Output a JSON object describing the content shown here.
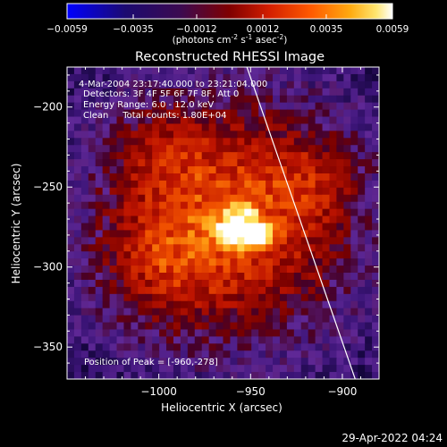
{
  "colorbar": {
    "ticks": [
      "-0.0059",
      "-0.0035",
      "-0.0012",
      "0.0012",
      "0.0035",
      "0.0059"
    ],
    "tick_values": [
      -0.0059,
      -0.0035,
      -0.0012,
      0.0012,
      0.0035,
      0.0059
    ],
    "range": [
      -0.0059,
      0.0059
    ],
    "units_prefix": "(photons cm",
    "units_exp1": "-2",
    "units_mid": " s",
    "units_exp2": "-1",
    "units_suffix": " asec",
    "units_exp3": "-2",
    "units_close": ")",
    "colors": [
      "#0000ff",
      "#1a0a6e",
      "#3a0a5a",
      "#7a0000",
      "#c81400",
      "#ff5000",
      "#ffa000",
      "#ffe060",
      "#ffffff"
    ]
  },
  "title": "Reconstructed RHESSI Image",
  "info": [
    "4-Mar-2004 23:17:40.000 to 23:21:04.000",
    "Detectors: 3F 4F 5F 6F 7F 8F, Att 0",
    "Energy Range: 6.0 - 12.0 keV",
    "Clean     Total counts: 1.80E+04"
  ],
  "peak_label": "Position of Peak = [-960,-278]",
  "footer_date": "29-Apr-2022 04:24",
  "chart_data": {
    "type": "heatmap",
    "title": "Reconstructed RHESSI Image",
    "xlabel": "Heliocentric X (arcsec)",
    "ylabel": "Heliocentric Y (arcsec)",
    "xlim": [
      -1050,
      -880
    ],
    "ylim": [
      -370,
      -175
    ],
    "xticks": [
      -1000,
      -950,
      -900
    ],
    "xtick_labels": [
      "−1000",
      "−950",
      "−900"
    ],
    "yticks": [
      -200,
      -250,
      -300,
      -350
    ],
    "ytick_labels": [
      "−200",
      "−250",
      "−300",
      "−350"
    ],
    "value_range": [
      -0.0059,
      0.0059
    ],
    "peak": {
      "x": -960,
      "y": -278
    },
    "sources": [
      {
        "x": -960,
        "y": -278,
        "amp": 1.0
      },
      {
        "x": -945,
        "y": -280,
        "amp": 0.85
      },
      {
        "x": -955,
        "y": -265,
        "amp": 0.55
      }
    ],
    "limb_line": [
      {
        "x": -952,
        "y": -175
      },
      {
        "x": -893,
        "y": -370
      }
    ]
  }
}
